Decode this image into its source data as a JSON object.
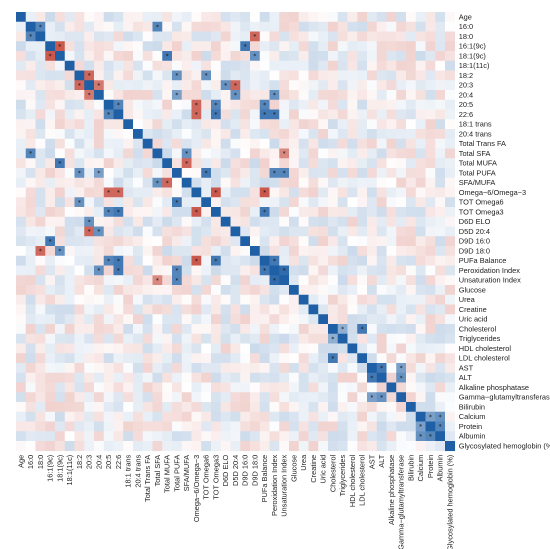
{
  "chart_data": {
    "type": "heatmap",
    "title": "",
    "xlabel": "",
    "ylabel": "",
    "labels": [
      "Age",
      "16:0",
      "18:0",
      "16:1(9c)",
      "18:1(9c)",
      "18:1(11c)",
      "18:2",
      "20:3",
      "20:4",
      "20:5",
      "22:6",
      "18:1 trans",
      "20:4 trans",
      "Total Trans FA",
      "Total SFA",
      "Total MUFA",
      "Total PUFA",
      "SFA/MUFA",
      "Omega−6/Omega−3",
      "TOT Omega6",
      "TOT Omega3",
      "D6D ELO",
      "D5D 20:4",
      "D9D 16:0",
      "D9D 18:0",
      "PUFa Balance",
      "Peroxidation Index",
      "Unsaturation Index",
      "Glucose",
      "Urea",
      "Creatine",
      "Uric acid",
      "Cholesterol",
      "Triglycerides",
      "HDL cholesterol",
      "LDL cholesterol",
      "AST",
      "ALT",
      "Alkaline phosphatase",
      "Gamma−glutamyltransferase",
      "Bilirubin",
      "Calcium",
      "Protein",
      "Albumin",
      "Glycosylated hemoglobin (%)"
    ],
    "value_range": [
      -1,
      1
    ],
    "diagonal": 1,
    "significance_marker": "*",
    "color_scale": {
      "negative": "#c0392b",
      "zero": "#ffffff",
      "positive": "#1f5fa6"
    },
    "strong_pairs": [
      {
        "a": "18:1(9c)",
        "b": "16:1(9c)",
        "r": -0.8
      },
      {
        "a": "20:3",
        "b": "18:2",
        "r": -0.7
      },
      {
        "a": "20:3",
        "b": "20:4",
        "r": -0.6
      },
      {
        "a": "18:0",
        "b": "16:0",
        "r": 0.7
      },
      {
        "a": "20:5",
        "b": "22:6",
        "r": 0.7
      },
      {
        "a": "Total MUFA",
        "b": "18:1(9c)",
        "r": 0.8
      },
      {
        "a": "Total SFA",
        "b": "16:0",
        "r": 0.7
      },
      {
        "a": "Total PUFA",
        "b": "18:2",
        "r": 0.6
      },
      {
        "a": "Total PUFA",
        "b": "20:4",
        "r": 0.5
      },
      {
        "a": "SFA/MUFA",
        "b": "Total MUFA",
        "r": -0.7
      },
      {
        "a": "SFA/MUFA",
        "b": "Total SFA",
        "r": 0.6
      },
      {
        "a": "Omega−6/Omega−3",
        "b": "20:5",
        "r": -0.7
      },
      {
        "a": "Omega−6/Omega−3",
        "b": "22:6",
        "r": -0.7
      },
      {
        "a": "TOT Omega6",
        "b": "Total PUFA",
        "r": 0.8
      },
      {
        "a": "TOT Omega6",
        "b": "18:2",
        "r": 0.6
      },
      {
        "a": "TOT Omega3",
        "b": "20:5",
        "r": 0.7
      },
      {
        "a": "TOT Omega3",
        "b": "22:6",
        "r": 0.8
      },
      {
        "a": "TOT Omega3",
        "b": "Omega−6/Omega−3",
        "r": -0.8
      },
      {
        "a": "D6D ELO",
        "b": "20:3",
        "r": 0.6
      },
      {
        "a": "D5D 20:4",
        "b": "20:3",
        "r": -0.7
      },
      {
        "a": "D5D 20:4",
        "b": "20:4",
        "r": 0.6
      },
      {
        "a": "D9D 16:0",
        "b": "16:1(9c)",
        "r": 0.8
      },
      {
        "a": "D9D 18:0",
        "b": "18:1(9c)",
        "r": 0.6
      },
      {
        "a": "D9D 18:0",
        "b": "18:0",
        "r": -0.7
      },
      {
        "a": "PUFa Balance",
        "b": "20:5",
        "r": 0.7
      },
      {
        "a": "PUFa Balance",
        "b": "22:6",
        "r": 0.8
      },
      {
        "a": "PUFa Balance",
        "b": "TOT Omega3",
        "r": 0.8
      },
      {
        "a": "PUFa Balance",
        "b": "Omega−6/Omega−3",
        "r": -0.8
      },
      {
        "a": "Peroxidation Index",
        "b": "22:6",
        "r": 0.8
      },
      {
        "a": "Peroxidation Index",
        "b": "20:4",
        "r": 0.6
      },
      {
        "a": "Peroxidation Index",
        "b": "Total PUFA",
        "r": 0.7
      },
      {
        "a": "Peroxidation Index",
        "b": "PUFa Balance",
        "r": 0.8
      },
      {
        "a": "Unsaturation Index",
        "b": "Peroxidation Index",
        "r": 0.9
      },
      {
        "a": "Unsaturation Index",
        "b": "Total PUFA",
        "r": 0.7
      },
      {
        "a": "Unsaturation Index",
        "b": "Total SFA",
        "r": -0.5
      },
      {
        "a": "Cholesterol",
        "b": "Triglycerides",
        "r": 0.4
      },
      {
        "a": "LDL cholesterol",
        "b": "Cholesterol",
        "r": 0.8
      },
      {
        "a": "ALT",
        "b": "AST",
        "r": 0.8
      },
      {
        "a": "Gamma−glutamyltransferase",
        "b": "ALT",
        "r": 0.6
      },
      {
        "a": "Gamma−glutamyltransferase",
        "b": "AST",
        "r": 0.5
      },
      {
        "a": "Albumin",
        "b": "Protein",
        "r": 0.7
      },
      {
        "a": "Calcium",
        "b": "Albumin",
        "r": 0.6
      },
      {
        "a": "Calcium",
        "b": "Protein",
        "r": 0.5
      }
    ]
  }
}
